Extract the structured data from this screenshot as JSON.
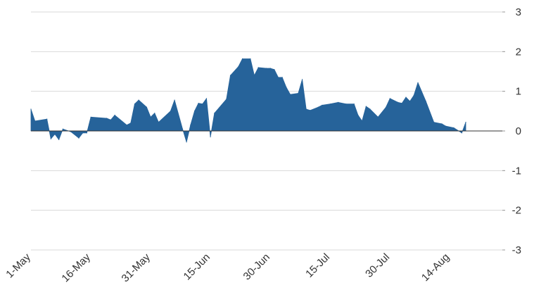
{
  "chart_data": {
    "type": "area",
    "title": "",
    "xlabel": "",
    "ylabel": "",
    "ylim": [
      -3,
      3
    ],
    "y_ticks": [
      "3",
      "2",
      "1",
      "0",
      "-1",
      "-2",
      "-3"
    ],
    "y_tick_values": [
      3,
      2,
      1,
      0,
      -1,
      -2,
      -3
    ],
    "y_axis_position": "right",
    "grid": true,
    "x_ticks": [
      "1-May",
      "16-May",
      "31-May",
      "15-Jun",
      "30-Jun",
      "15-Jul",
      "30-Jul",
      "14-Aug"
    ],
    "x_tick_days": [
      0,
      15,
      30,
      45,
      60,
      75,
      90,
      105
    ],
    "colors": {
      "area": "#26639a",
      "grid": "#d9d9d9",
      "zero_line": "#333333"
    },
    "series": [
      {
        "points": [
          {
            "x": "1-May",
            "y": 0.55
          },
          {
            "x": "2-May",
            "y": 0.25
          },
          {
            "x": "5-May",
            "y": 0.3
          },
          {
            "x": "6-May",
            "y": -0.2
          },
          {
            "x": "7-May",
            "y": -0.08
          },
          {
            "x": "8-May",
            "y": -0.22
          },
          {
            "x": "9-May",
            "y": 0.05
          },
          {
            "x": "11-May",
            "y": -0.02
          },
          {
            "x": "13-May",
            "y": -0.18
          },
          {
            "x": "14-May",
            "y": -0.05
          },
          {
            "x": "15-May",
            "y": -0.05
          },
          {
            "x": "16-May",
            "y": 0.35
          },
          {
            "x": "20-May",
            "y": 0.32
          },
          {
            "x": "21-May",
            "y": 0.28
          },
          {
            "x": "22-May",
            "y": 0.4
          },
          {
            "x": "25-May",
            "y": 0.15
          },
          {
            "x": "26-May",
            "y": 0.2
          },
          {
            "x": "27-May",
            "y": 0.68
          },
          {
            "x": "28-May",
            "y": 0.78
          },
          {
            "x": "30-May",
            "y": 0.6
          },
          {
            "x": "31-May",
            "y": 0.35
          },
          {
            "x": "1-Jun",
            "y": 0.45
          },
          {
            "x": "2-Jun",
            "y": 0.22
          },
          {
            "x": "5-Jun",
            "y": 0.5
          },
          {
            "x": "6-Jun",
            "y": 0.78
          },
          {
            "x": "8-Jun",
            "y": 0.05
          },
          {
            "x": "9-Jun",
            "y": -0.28
          },
          {
            "x": "10-Jun",
            "y": 0.15
          },
          {
            "x": "11-Jun",
            "y": 0.5
          },
          {
            "x": "12-Jun",
            "y": 0.7
          },
          {
            "x": "13-Jun",
            "y": 0.68
          },
          {
            "x": "14-Jun",
            "y": 0.82
          },
          {
            "x": "15-Jun",
            "y": -0.15
          },
          {
            "x": "16-Jun",
            "y": 0.45
          },
          {
            "x": "19-Jun",
            "y": 0.8
          },
          {
            "x": "20-Jun",
            "y": 1.4
          },
          {
            "x": "22-Jun",
            "y": 1.62
          },
          {
            "x": "23-Jun",
            "y": 1.82
          },
          {
            "x": "25-Jun",
            "y": 1.82
          },
          {
            "x": "26-Jun",
            "y": 1.4
          },
          {
            "x": "27-Jun",
            "y": 1.6
          },
          {
            "x": "29-Jun",
            "y": 1.58
          },
          {
            "x": "30-Jun",
            "y": 1.58
          },
          {
            "x": "1-Jul",
            "y": 1.55
          },
          {
            "x": "2-Jul",
            "y": 1.35
          },
          {
            "x": "3-Jul",
            "y": 1.35
          },
          {
            "x": "4-Jul",
            "y": 1.1
          },
          {
            "x": "5-Jul",
            "y": 0.92
          },
          {
            "x": "7-Jul",
            "y": 0.95
          },
          {
            "x": "8-Jul",
            "y": 1.3
          },
          {
            "x": "9-Jul",
            "y": 0.55
          },
          {
            "x": "10-Jul",
            "y": 0.52
          },
          {
            "x": "12-Jul",
            "y": 0.6
          },
          {
            "x": "13-Jul",
            "y": 0.65
          },
          {
            "x": "15-Jul",
            "y": 0.68
          },
          {
            "x": "17-Jul",
            "y": 0.72
          },
          {
            "x": "19-Jul",
            "y": 0.68
          },
          {
            "x": "21-Jul",
            "y": 0.68
          },
          {
            "x": "22-Jul",
            "y": 0.4
          },
          {
            "x": "23-Jul",
            "y": 0.25
          },
          {
            "x": "24-Jul",
            "y": 0.62
          },
          {
            "x": "25-Jul",
            "y": 0.55
          },
          {
            "x": "27-Jul",
            "y": 0.35
          },
          {
            "x": "29-Jul",
            "y": 0.6
          },
          {
            "x": "30-Jul",
            "y": 0.82
          },
          {
            "x": "1-Aug",
            "y": 0.72
          },
          {
            "x": "2-Aug",
            "y": 0.7
          },
          {
            "x": "3-Aug",
            "y": 0.85
          },
          {
            "x": "4-Aug",
            "y": 0.75
          },
          {
            "x": "5-Aug",
            "y": 0.9
          },
          {
            "x": "6-Aug",
            "y": 1.22
          },
          {
            "x": "8-Aug",
            "y": 0.75
          },
          {
            "x": "10-Aug",
            "y": 0.22
          },
          {
            "x": "12-Aug",
            "y": 0.18
          },
          {
            "x": "13-Aug",
            "y": 0.12
          },
          {
            "x": "15-Aug",
            "y": 0.08
          },
          {
            "x": "17-Aug",
            "y": -0.05
          },
          {
            "x": "18-Aug",
            "y": 0.22
          }
        ]
      }
    ]
  }
}
